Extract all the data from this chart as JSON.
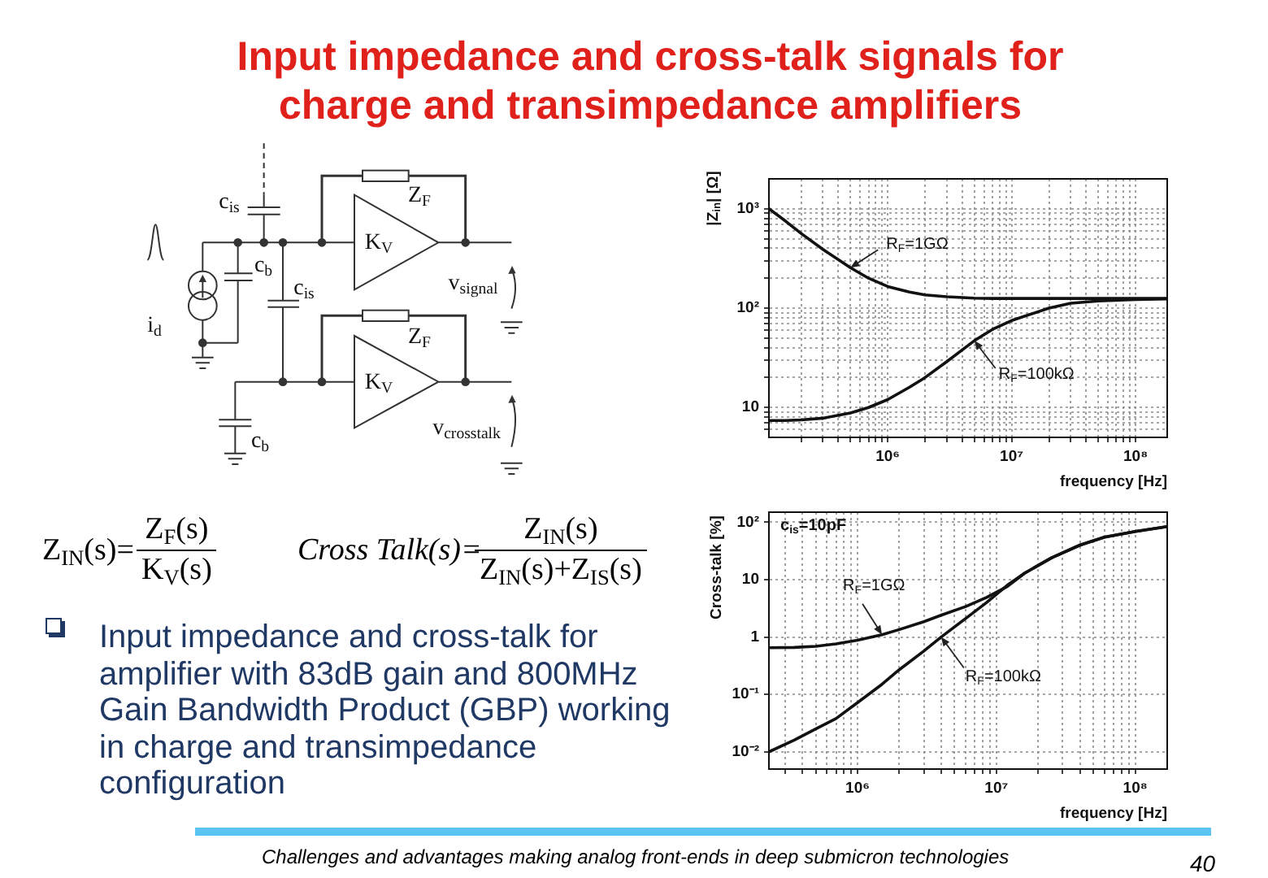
{
  "chart_data": [
    {
      "type": "other",
      "title": "Input impedance and cross-talk signals for charge and transimpedance amplifiers",
      "annotations": [
        "c$_{is}$",
        "c$_{b}$",
        "c$_{is}$",
        "i$_{d}$",
        "Z$_{F}$",
        "K$_{V}$",
        "v$_{signal}$",
        "Z$_{F}$",
        "K$_{V}$",
        "v$_{crosstalk}$",
        "c$_{b}$",
        "Z$_{IN}$(s)=",
        "Z$_{F}$(s)",
        "K$_{V}$(s)",
        "Cross Talk(s)=",
        "Z$_{IN}$(s)",
        "Z$_{IN}$(s)+Z$_{IS}$(s)",
        "Input impedance and cross-talk for amplifier with 83dB gain and 800MHz Gain Bandwidth Product (GBP) working in charge and transimpedance configuration",
        "Challenges and advantages making analog front-ends in deep submicron technologies",
        "40"
      ]
    },
    {
      "type": "line",
      "xlabel": "frequency [Hz]",
      "ylabel": "|Z$_{in}$| [Ω]",
      "log": "xy",
      "grid": true,
      "marker": "none",
      "x": [
        110000,
        150000,
        200000,
        300000,
        500000,
        700000,
        1000000,
        1500000,
        2000000,
        3000000,
        5000000,
        7000000,
        10000000,
        20000000,
        30000000,
        50000000,
        100000000,
        180000000
      ],
      "series": [
        {
          "color": "#111111",
          "values": [
            1000,
            750,
            565,
            390,
            255,
            200,
            165,
            145,
            136,
            130,
            126,
            125,
            125,
            125,
            125,
            125,
            125,
            125
          ]
        },
        {
          "color": "#111111",
          "values": [
            7.4,
            7.4,
            7.5,
            7.8,
            8.8,
            10,
            12,
            16,
            20,
            29,
            47,
            61,
            75,
            100,
            112,
            118,
            122,
            124
          ]
        }
      ],
      "xlim": [
        110000,
        180000000
      ],
      "ylim": [
        5,
        2000
      ],
      "xticks": [
        {
          "value": 200000,
          "label": null
        },
        {
          "value": 300000,
          "label": null
        },
        {
          "value": 400000,
          "label": null
        },
        {
          "value": 500000,
          "label": null
        },
        {
          "value": 600000,
          "label": null
        },
        {
          "value": 700000,
          "label": null
        },
        {
          "value": 800000,
          "label": null
        },
        {
          "value": 900000,
          "label": null
        },
        {
          "value": 1000000,
          "label": "10⁶"
        },
        {
          "value": 2000000,
          "label": null
        },
        {
          "value": 3000000,
          "label": null
        },
        {
          "value": 4000000,
          "label": null
        },
        {
          "value": 5000000,
          "label": null
        },
        {
          "value": 6000000,
          "label": null
        },
        {
          "value": 7000000,
          "label": null
        },
        {
          "value": 8000000,
          "label": null
        },
        {
          "value": 9000000,
          "label": null
        },
        {
          "value": 10000000,
          "label": "10⁷"
        },
        {
          "value": 20000000,
          "label": null
        },
        {
          "value": 30000000,
          "label": null
        },
        {
          "value": 40000000,
          "label": null
        },
        {
          "value": 50000000,
          "label": null
        },
        {
          "value": 60000000,
          "label": null
        },
        {
          "value": 70000000,
          "label": null
        },
        {
          "value": 80000000,
          "label": null
        },
        {
          "value": 90000000,
          "label": null
        },
        {
          "value": 100000000,
          "label": "10⁸"
        }
      ],
      "yticks": [
        {
          "value": 6,
          "label": null
        },
        {
          "value": 7,
          "label": null
        },
        {
          "value": 8,
          "label": null
        },
        {
          "value": 9,
          "label": null
        },
        {
          "value": 10,
          "label": "10"
        },
        {
          "value": 20,
          "label": null
        },
        {
          "value": 30,
          "label": null
        },
        {
          "value": 40,
          "label": null
        },
        {
          "value": 50,
          "label": null
        },
        {
          "value": 60,
          "label": null
        },
        {
          "value": 70,
          "label": null
        },
        {
          "value": 80,
          "label": null
        },
        {
          "value": 90,
          "label": null
        },
        {
          "value": 100,
          "label": "10²"
        },
        {
          "value": 200,
          "label": null
        },
        {
          "value": 300,
          "label": null
        },
        {
          "value": 400,
          "label": null
        },
        {
          "value": 500,
          "label": null
        },
        {
          "value": 600,
          "label": null
        },
        {
          "value": 700,
          "label": null
        },
        {
          "value": 800,
          "label": null
        },
        {
          "value": 900,
          "label": null
        },
        {
          "value": 1000,
          "label": "10³"
        }
      ],
      "annotations": [
        {
          "text": "R$_{F}$=1GΩ",
          "x": 500000,
          "y": 255
        },
        {
          "text": "R$_{F}$=100kΩ",
          "x": 5000000,
          "y": 47
        }
      ]
    },
    {
      "type": "line",
      "xlabel": "frequency [Hz]",
      "ylabel": "Cross-talk [%]",
      "log": "xy",
      "grid": true,
      "marker": "none",
      "x": [
        230000,
        350000,
        500000,
        700000,
        1000000,
        1500000,
        2000000,
        3000000,
        4000000,
        6000000,
        8500000,
        12000000,
        16000000,
        25000000,
        40000000,
        60000000,
        100000000,
        170000000
      ],
      "series": [
        {
          "color": "#111111",
          "values": [
            0.65,
            0.66,
            0.69,
            0.76,
            0.88,
            1.1,
            1.35,
            1.85,
            2.4,
            3.4,
            4.9,
            7.6,
            13,
            24,
            40,
            55,
            69,
            84
          ]
        },
        {
          "color": "#111111",
          "values": [
            0.01,
            0.016,
            0.025,
            0.038,
            0.072,
            0.15,
            0.27,
            0.57,
            1,
            2.1,
            4,
            8,
            13,
            24,
            40,
            55,
            69,
            84
          ]
        }
      ],
      "xlim": [
        230000,
        170000000
      ],
      "ylim": [
        0.005,
        150
      ],
      "xticks": [
        {
          "value": 300000,
          "label": null
        },
        {
          "value": 400000,
          "label": null
        },
        {
          "value": 500000,
          "label": null
        },
        {
          "value": 600000,
          "label": null
        },
        {
          "value": 700000,
          "label": null
        },
        {
          "value": 800000,
          "label": null
        },
        {
          "value": 900000,
          "label": null
        },
        {
          "value": 1000000,
          "label": "10⁶"
        },
        {
          "value": 2000000,
          "label": null
        },
        {
          "value": 3000000,
          "label": null
        },
        {
          "value": 4000000,
          "label": null
        },
        {
          "value": 5000000,
          "label": null
        },
        {
          "value": 6000000,
          "label": null
        },
        {
          "value": 7000000,
          "label": null
        },
        {
          "value": 8000000,
          "label": null
        },
        {
          "value": 9000000,
          "label": null
        },
        {
          "value": 10000000,
          "label": "10⁷"
        },
        {
          "value": 20000000,
          "label": null
        },
        {
          "value": 30000000,
          "label": null
        },
        {
          "value": 40000000,
          "label": null
        },
        {
          "value": 50000000,
          "label": null
        },
        {
          "value": 60000000,
          "label": null
        },
        {
          "value": 70000000,
          "label": null
        },
        {
          "value": 80000000,
          "label": null
        },
        {
          "value": 90000000,
          "label": null
        },
        {
          "value": 100000000,
          "label": "10⁸"
        }
      ],
      "yticks": [
        {
          "value": 0.01,
          "label": "10⁻²"
        },
        {
          "value": 0.1,
          "label": "10⁻¹"
        },
        {
          "value": 1,
          "label": "1"
        },
        {
          "value": 10,
          "label": "10"
        },
        {
          "value": 100,
          "label": "10²"
        }
      ],
      "annotations": [
        "c$_{is}$=10pF",
        {
          "text": "R$_{F}$=1GΩ",
          "x": 1500000,
          "y": 1.1
        },
        {
          "text": "R$_{F}$=100kΩ",
          "x": 4000000,
          "y": 1
        }
      ]
    }
  ]
}
